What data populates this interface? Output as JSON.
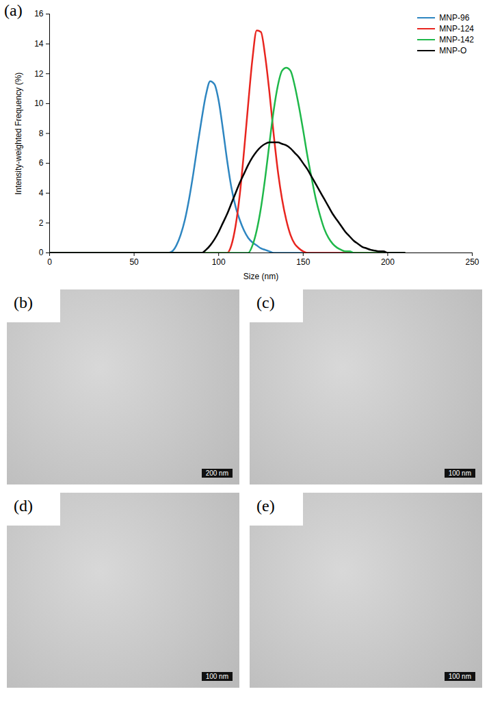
{
  "chart_data": {
    "type": "line",
    "panel": "(a)",
    "xlabel": "Size (nm)",
    "ylabel": "Intensity-weighted Frequency (%)",
    "xlim": [
      0,
      250
    ],
    "xticks": [
      0,
      50,
      100,
      150,
      200,
      250
    ],
    "ylim": [
      0,
      16
    ],
    "yticks": [
      0,
      2,
      4,
      6,
      8,
      10,
      12,
      14,
      16
    ],
    "grid": false,
    "legend": "upper right",
    "x": [
      0,
      70,
      72.5,
      75,
      77.5,
      80,
      82.5,
      85,
      87.5,
      90,
      92.5,
      95,
      97.5,
      100,
      102.5,
      105,
      107.5,
      110,
      112.5,
      115,
      117.5,
      120,
      122.5,
      125,
      127.5,
      130,
      132.5,
      135,
      137.5,
      140,
      142.5,
      145,
      147.5,
      150,
      152.5,
      155,
      157.5,
      160,
      162.5,
      165,
      167.5,
      170,
      172.5,
      175,
      177.5,
      180,
      182.5,
      185,
      187.5,
      190,
      192.5,
      195,
      197.5,
      200,
      202.5,
      205,
      207.5,
      210
    ],
    "series": [
      {
        "name": "MNP-96",
        "color": "#2e86c1",
        "values": [
          0,
          0,
          0.1,
          0.5,
          1.2,
          2.2,
          3.6,
          5.3,
          7.2,
          9.0,
          10.6,
          11.5,
          11.3,
          10.2,
          8.3,
          6.2,
          4.4,
          3.1,
          2.2,
          1.5,
          1.0,
          0.7,
          0.5,
          0.3,
          0.2,
          0.1,
          0,
          0,
          0,
          0,
          0,
          0,
          0,
          0,
          0,
          0,
          0,
          0,
          0,
          0,
          0,
          0,
          0,
          0,
          0,
          0,
          0,
          0,
          0,
          0,
          0,
          0,
          0,
          0,
          0,
          0,
          0,
          0
        ]
      },
      {
        "name": "MNP-124",
        "color": "#e8251f",
        "values": [
          0,
          0,
          0,
          0,
          0,
          0,
          0,
          0,
          0,
          0,
          0,
          0,
          0,
          0,
          0,
          0,
          0.5,
          1.8,
          3.9,
          6.8,
          10.0,
          13.0,
          14.9,
          14.8,
          13.2,
          10.8,
          8.0,
          5.5,
          3.6,
          2.2,
          1.2,
          0.6,
          0.3,
          0.1,
          0,
          0,
          0,
          0,
          0,
          0,
          0,
          0,
          0,
          0,
          0,
          0,
          0,
          0,
          0,
          0,
          0,
          0,
          0,
          0,
          0,
          0,
          0,
          0
        ]
      },
      {
        "name": "MNP-142",
        "color": "#1fb84a",
        "values": [
          0,
          0,
          0,
          0,
          0,
          0,
          0,
          0,
          0,
          0,
          0,
          0,
          0,
          0,
          0,
          0,
          0,
          0,
          0,
          0,
          0,
          0.5,
          1.5,
          3.0,
          5.0,
          7.3,
          9.5,
          11.2,
          12.2,
          12.4,
          12.2,
          11.2,
          9.8,
          8.2,
          6.5,
          5.0,
          3.6,
          2.5,
          1.6,
          1.0,
          0.6,
          0.35,
          0.2,
          0.1,
          0.1,
          0,
          0,
          0,
          0,
          0,
          0,
          0,
          0,
          0,
          0,
          0,
          0,
          0
        ]
      },
      {
        "name": "MNP-O",
        "color": "#000000",
        "values": [
          0,
          0,
          0,
          0,
          0,
          0,
          0,
          0,
          0,
          0,
          0.2,
          0.5,
          0.9,
          1.4,
          2.0,
          2.6,
          3.3,
          4.0,
          4.7,
          5.3,
          5.9,
          6.4,
          6.8,
          7.1,
          7.3,
          7.4,
          7.4,
          7.4,
          7.3,
          7.2,
          7.0,
          6.7,
          6.4,
          6.0,
          5.6,
          5.1,
          4.6,
          4.1,
          3.6,
          3.1,
          2.6,
          2.2,
          1.8,
          1.4,
          1.1,
          0.8,
          0.6,
          0.4,
          0.3,
          0.2,
          0.15,
          0.1,
          0.1,
          0,
          0,
          0,
          0,
          0
        ]
      }
    ]
  },
  "images": [
    {
      "panel": "(b)",
      "scale_bar": "200 nm"
    },
    {
      "panel": "(c)",
      "scale_bar": "100 nm"
    },
    {
      "panel": "(d)",
      "scale_bar": "100 nm"
    },
    {
      "panel": "(e)",
      "scale_bar": "100 nm"
    }
  ]
}
